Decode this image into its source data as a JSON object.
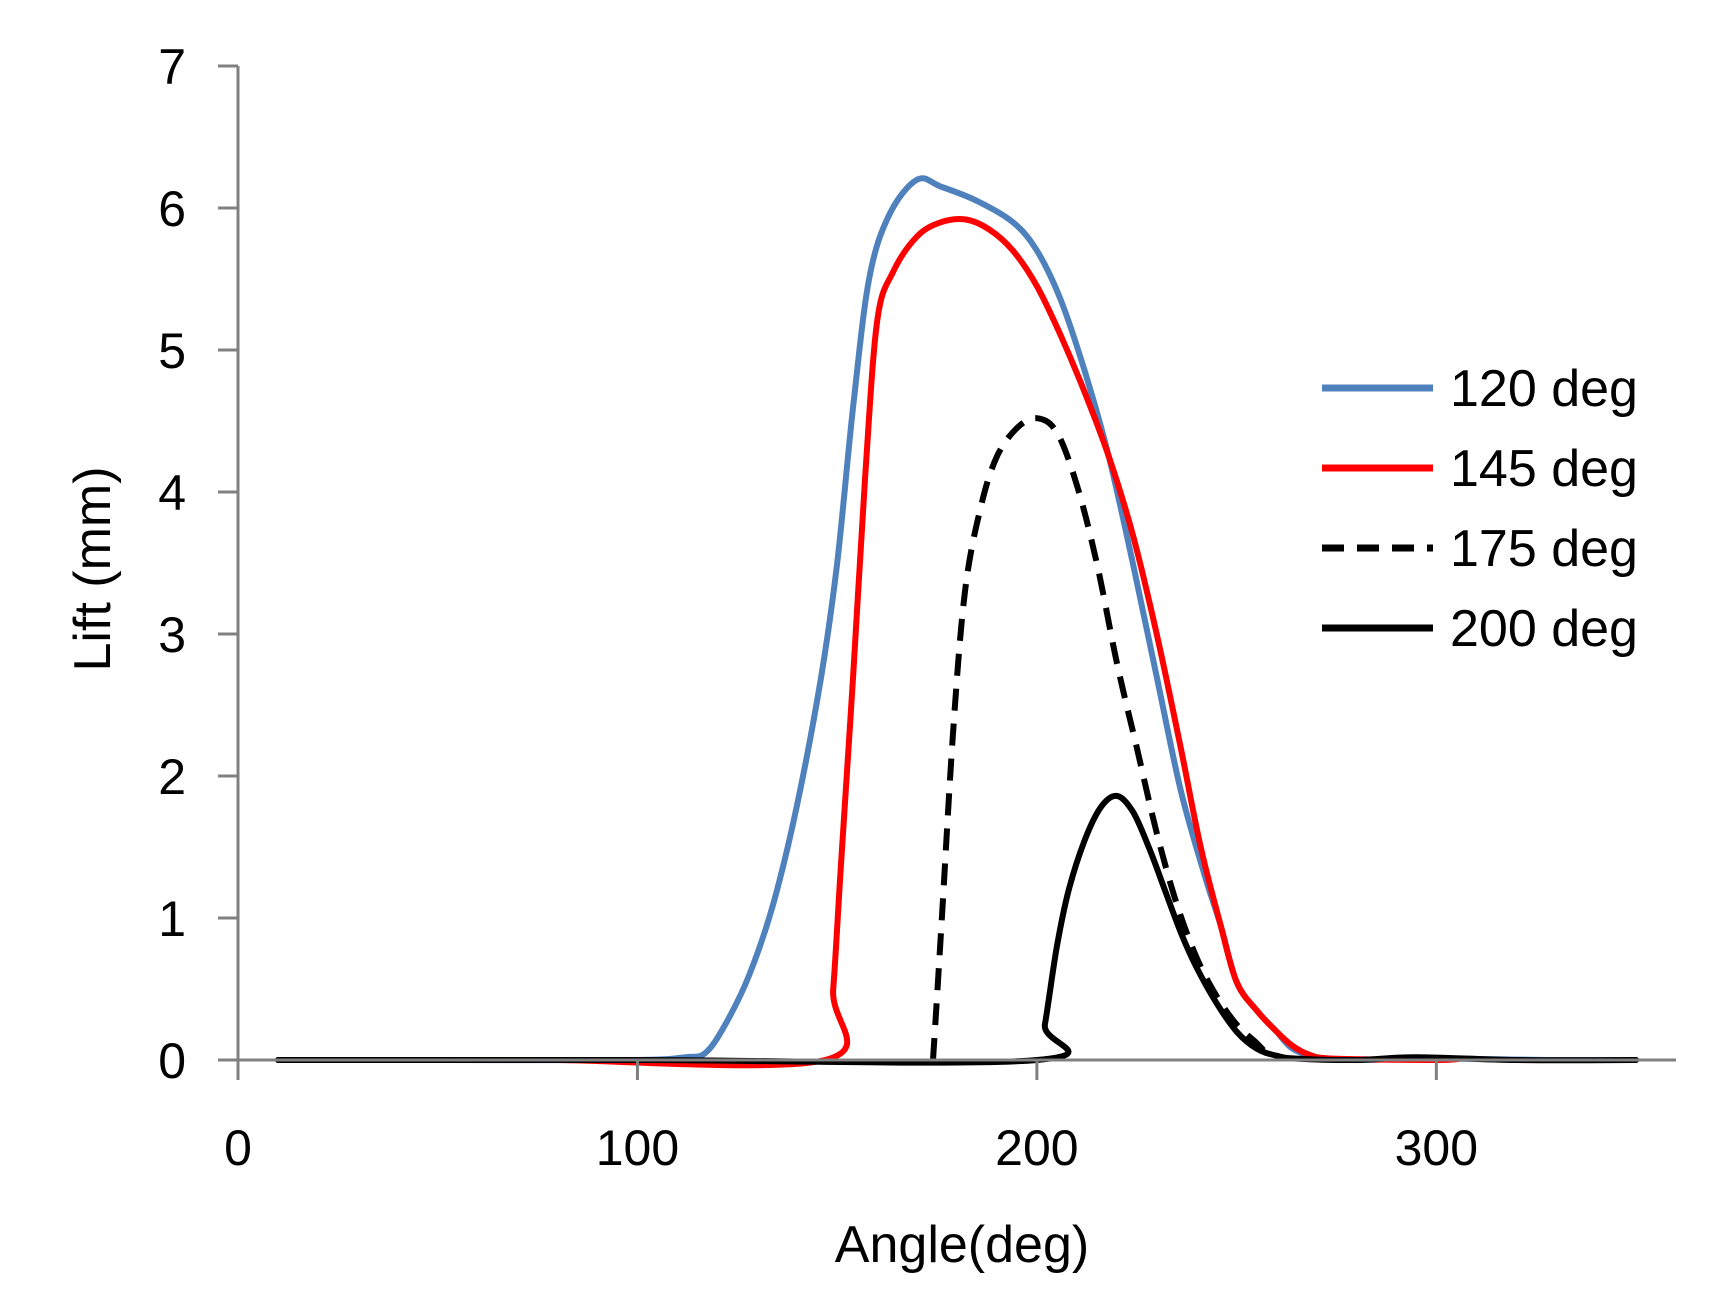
{
  "chart_data": {
    "type": "line",
    "title": "",
    "xlabel": "Angle(deg)",
    "ylabel": "Lift (mm)",
    "xlim": [
      0,
      360
    ],
    "ylim": [
      0,
      7
    ],
    "xticks": [
      0,
      100,
      200,
      300
    ],
    "yticks": [
      0,
      1,
      2,
      3,
      4,
      5,
      6,
      7
    ],
    "grid": false,
    "legend_position": "right",
    "series": [
      {
        "name": "120 deg",
        "color": "#4f81bd",
        "dash": "solid",
        "points": [
          [
            10,
            0
          ],
          [
            50,
            0
          ],
          [
            100,
            0
          ],
          [
            112,
            0.02
          ],
          [
            117,
            0.05
          ],
          [
            122,
            0.25
          ],
          [
            128,
            0.6
          ],
          [
            134,
            1.1
          ],
          [
            140,
            1.8
          ],
          [
            146,
            2.7
          ],
          [
            150,
            3.5
          ],
          [
            154,
            4.6
          ],
          [
            158,
            5.5
          ],
          [
            163,
            5.95
          ],
          [
            170,
            6.2
          ],
          [
            176,
            6.15
          ],
          [
            185,
            6.05
          ],
          [
            194,
            5.9
          ],
          [
            200,
            5.7
          ],
          [
            206,
            5.35
          ],
          [
            212,
            4.85
          ],
          [
            218,
            4.25
          ],
          [
            224,
            3.5
          ],
          [
            230,
            2.7
          ],
          [
            236,
            1.9
          ],
          [
            242,
            1.3
          ],
          [
            246,
            0.95
          ],
          [
            250,
            0.55
          ],
          [
            255,
            0.35
          ],
          [
            260,
            0.2
          ],
          [
            264,
            0.08
          ],
          [
            270,
            0.02
          ],
          [
            280,
            0
          ],
          [
            300,
            0.01
          ],
          [
            330,
            0
          ],
          [
            350,
            0
          ]
        ]
      },
      {
        "name": "145 deg",
        "color": "#ff0000",
        "dash": "solid",
        "points": [
          [
            70,
            0
          ],
          [
            80,
            0
          ],
          [
            147,
            0
          ],
          [
            149,
            0.5
          ],
          [
            151,
            1.4
          ],
          [
            154,
            2.7
          ],
          [
            157,
            4.1
          ],
          [
            160,
            5.2
          ],
          [
            164,
            5.55
          ],
          [
            170,
            5.8
          ],
          [
            176,
            5.9
          ],
          [
            182,
            5.92
          ],
          [
            188,
            5.85
          ],
          [
            194,
            5.7
          ],
          [
            200,
            5.45
          ],
          [
            206,
            5.1
          ],
          [
            212,
            4.7
          ],
          [
            218,
            4.25
          ],
          [
            224,
            3.7
          ],
          [
            230,
            3.0
          ],
          [
            236,
            2.2
          ],
          [
            241,
            1.5
          ],
          [
            246,
            0.95
          ],
          [
            250,
            0.55
          ],
          [
            255,
            0.35
          ],
          [
            260,
            0.2
          ],
          [
            264,
            0.1
          ],
          [
            268,
            0.04
          ],
          [
            274,
            0.01
          ],
          [
            300,
            0
          ],
          [
            306,
            0.01
          ]
        ]
      },
      {
        "name": "175 deg",
        "color": "#000000",
        "dash": "dashed",
        "points": [
          [
            174,
            0
          ],
          [
            176,
            0.9
          ],
          [
            179,
            2.3
          ],
          [
            182,
            3.3
          ],
          [
            186,
            3.9
          ],
          [
            190,
            4.25
          ],
          [
            195,
            4.45
          ],
          [
            200,
            4.52
          ],
          [
            205,
            4.42
          ],
          [
            210,
            4.05
          ],
          [
            215,
            3.5
          ],
          [
            220,
            2.8
          ],
          [
            225,
            2.2
          ],
          [
            230,
            1.6
          ],
          [
            235,
            1.1
          ],
          [
            240,
            0.72
          ],
          [
            245,
            0.45
          ],
          [
            250,
            0.25
          ],
          [
            255,
            0.12
          ],
          [
            258,
            0.03
          ]
        ]
      },
      {
        "name": "200 deg",
        "color": "#000000",
        "dash": "solid",
        "points": [
          [
            10,
            0
          ],
          [
            100,
            0
          ],
          [
            200,
            0
          ],
          [
            202,
            0.25
          ],
          [
            205,
            0.8
          ],
          [
            208,
            1.2
          ],
          [
            212,
            1.55
          ],
          [
            216,
            1.78
          ],
          [
            220,
            1.86
          ],
          [
            224,
            1.75
          ],
          [
            228,
            1.5
          ],
          [
            232,
            1.2
          ],
          [
            236,
            0.9
          ],
          [
            240,
            0.65
          ],
          [
            245,
            0.4
          ],
          [
            250,
            0.2
          ],
          [
            255,
            0.08
          ],
          [
            260,
            0.03
          ],
          [
            265,
            0.01
          ],
          [
            280,
            0
          ],
          [
            295,
            0.02
          ],
          [
            320,
            0
          ],
          [
            350,
            0
          ]
        ]
      }
    ]
  }
}
